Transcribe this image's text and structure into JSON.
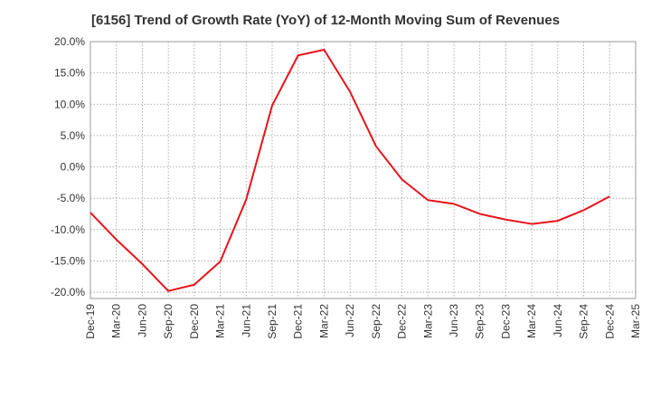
{
  "chart_data": {
    "type": "line",
    "title": "[6156]  Trend of Growth Rate (YoY) of 12-Month Moving Sum of Revenues",
    "xlabel": "",
    "ylabel": "",
    "ylim": [
      -21,
      20
    ],
    "y_ticks": [
      "20.0%",
      "15.0%",
      "10.0%",
      "5.0%",
      "0.0%",
      "-5.0%",
      "-10.0%",
      "-15.0%",
      "-20.0%"
    ],
    "y_tick_values": [
      20,
      15,
      10,
      5,
      0,
      -5,
      -10,
      -15,
      -20
    ],
    "x_ticks": [
      "Dec-19",
      "Mar-20",
      "Jun-20",
      "Sep-20",
      "Dec-20",
      "Mar-21",
      "Jun-21",
      "Sep-21",
      "Dec-21",
      "Mar-22",
      "Jun-22",
      "Sep-22",
      "Dec-22",
      "Mar-23",
      "Jun-23",
      "Sep-23",
      "Dec-23",
      "Mar-24",
      "Jun-24",
      "Sep-24",
      "Dec-24",
      "Mar-25"
    ],
    "grid": true,
    "series": [
      {
        "color": "#e8141c",
        "x": [
          "Dec-19",
          "Mar-20",
          "Jun-20",
          "Sep-20",
          "Dec-20",
          "Mar-21",
          "Jun-21",
          "Sep-21",
          "Dec-21",
          "Mar-22",
          "Jun-22",
          "Sep-22",
          "Dec-22",
          "Mar-23",
          "Jun-23",
          "Sep-23",
          "Dec-23",
          "Mar-24",
          "Jun-24",
          "Sep-24",
          "Dec-24"
        ],
        "values": [
          -7.3,
          -11.6,
          -15.5,
          -19.8,
          -18.8,
          -15.1,
          -5.2,
          9.8,
          17.8,
          18.7,
          12.0,
          3.3,
          -2.0,
          -5.3,
          -5.9,
          -7.5,
          -8.4,
          -9.1,
          -8.6,
          -6.9,
          -4.7
        ]
      }
    ]
  }
}
